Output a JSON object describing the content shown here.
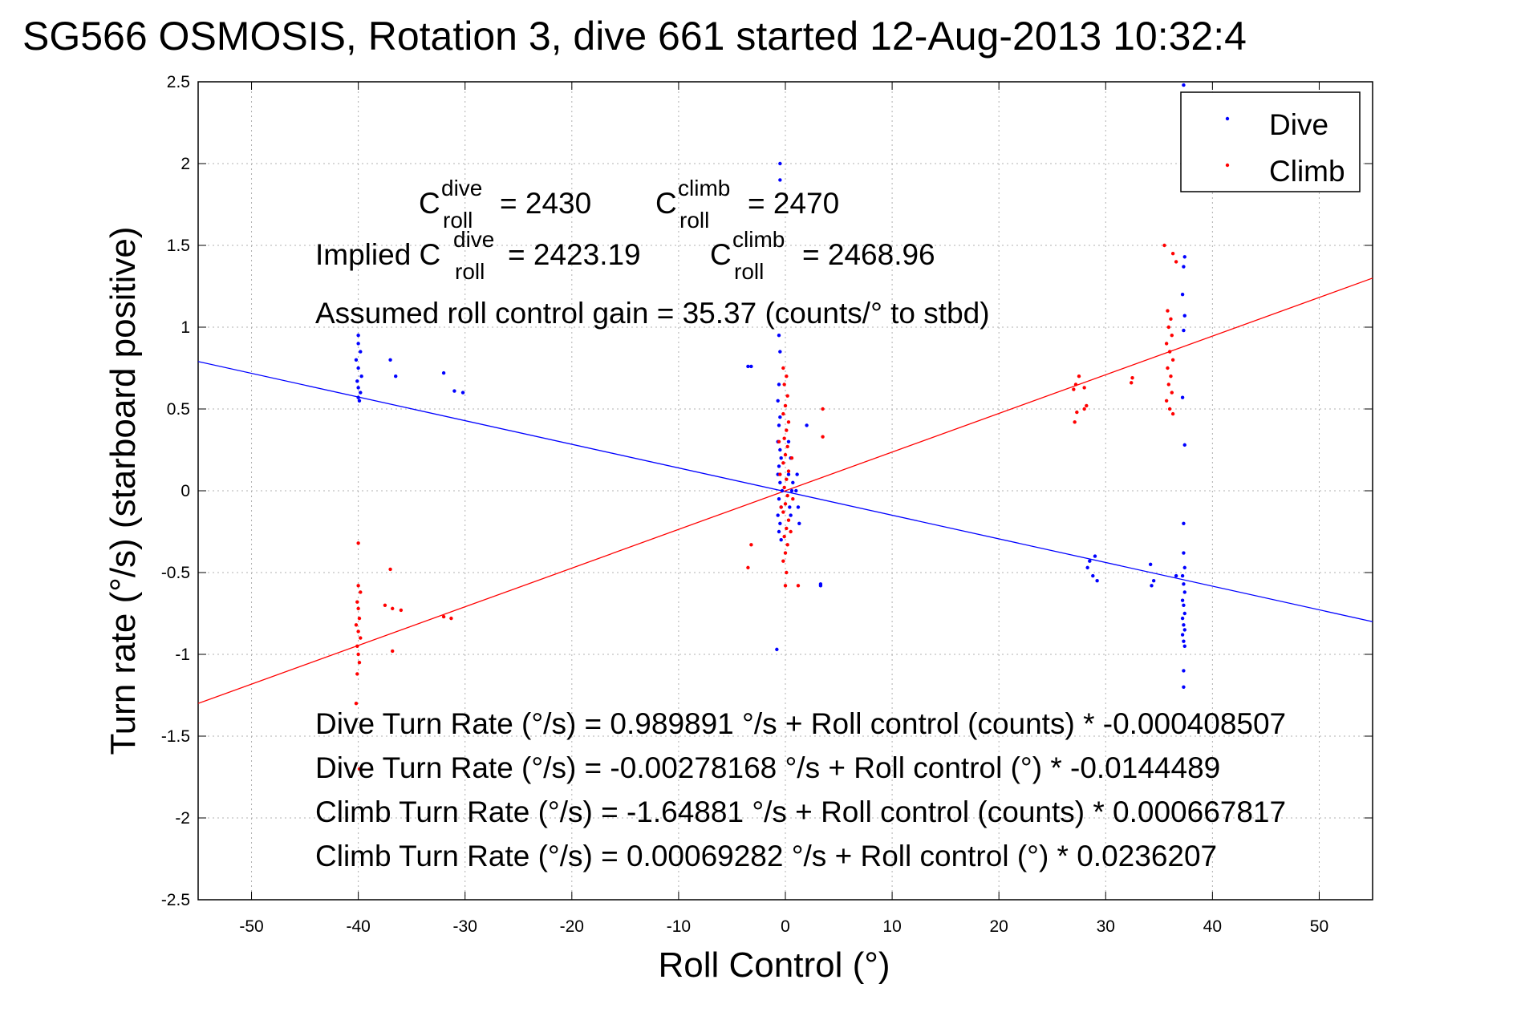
{
  "chart_data": {
    "type": "scatter",
    "title": "SG566 OSMOSIS, Rotation 3, dive 661 started 12-Aug-2013 10:32:4",
    "xlabel": "Roll Control (°)",
    "ylabel": "Turn rate (°/s)  (starboard positive)",
    "xlim": [
      -55,
      55
    ],
    "ylim": [
      -2.5,
      2.5
    ],
    "xticks": [
      -50,
      -40,
      -30,
      -20,
      -10,
      0,
      10,
      20,
      30,
      40,
      50
    ],
    "yticks": [
      -2.5,
      -2,
      -1.5,
      -1,
      -0.5,
      0,
      0.5,
      1,
      1.5,
      2,
      2.5
    ],
    "grid": true,
    "legend": {
      "placement": "top-right",
      "entries": [
        "Dive",
        "Climb"
      ]
    },
    "colors": {
      "Dive": "#0000ff",
      "Climb": "#ff0000"
    },
    "series": [
      {
        "name": "Dive",
        "color": "#0000ff",
        "points": [
          [
            -40,
            0.95
          ],
          [
            -40,
            0.9
          ],
          [
            -39.8,
            0.85
          ],
          [
            -40.2,
            0.8
          ],
          [
            -40,
            0.75
          ],
          [
            -39.7,
            0.7
          ],
          [
            -40.1,
            0.67
          ],
          [
            -40,
            0.63
          ],
          [
            -39.8,
            0.6
          ],
          [
            -40,
            0.57
          ],
          [
            -39.9,
            0.55
          ],
          [
            -37,
            0.8
          ],
          [
            -36.5,
            0.7
          ],
          [
            -32,
            0.72
          ],
          [
            -31,
            0.61
          ],
          [
            -30.2,
            0.6
          ],
          [
            -0.5,
            2.0
          ],
          [
            -0.5,
            1.9
          ],
          [
            -3.5,
            0.76
          ],
          [
            -3.2,
            0.76
          ],
          [
            -0.6,
            0.95
          ],
          [
            -0.5,
            0.85
          ],
          [
            -0.6,
            0.65
          ],
          [
            -0.7,
            0.55
          ],
          [
            -0.5,
            0.45
          ],
          [
            -0.6,
            0.4
          ],
          [
            -0.7,
            0.3
          ],
          [
            -0.5,
            0.25
          ],
          [
            -0.4,
            0.2
          ],
          [
            -0.6,
            0.15
          ],
          [
            -0.7,
            0.1
          ],
          [
            -0.5,
            0.05
          ],
          [
            -0.3,
            0.0
          ],
          [
            -0.6,
            -0.05
          ],
          [
            -0.4,
            -0.1
          ],
          [
            -0.7,
            -0.15
          ],
          [
            -0.5,
            -0.2
          ],
          [
            -0.6,
            -0.25
          ],
          [
            -0.4,
            -0.3
          ],
          [
            0.3,
            0.3
          ],
          [
            0.5,
            0.2
          ],
          [
            0.3,
            0.1
          ],
          [
            0.6,
            0.0
          ],
          [
            0.4,
            -0.1
          ],
          [
            0.5,
            -0.15
          ],
          [
            0.7,
            0.05
          ],
          [
            1.0,
            0.0
          ],
          [
            1.2,
            -0.1
          ],
          [
            1.1,
            0.1
          ],
          [
            1.3,
            -0.2
          ],
          [
            2.0,
            0.4
          ],
          [
            3.3,
            -0.57
          ],
          [
            3.3,
            -0.58
          ],
          [
            -0.8,
            -0.97
          ],
          [
            28.5,
            -0.43
          ],
          [
            29.0,
            -0.4
          ],
          [
            28.3,
            -0.47
          ],
          [
            28.8,
            -0.52
          ],
          [
            29.2,
            -0.55
          ],
          [
            34.2,
            -0.45
          ],
          [
            34.5,
            -0.55
          ],
          [
            34.3,
            -0.58
          ],
          [
            36.6,
            -0.52
          ],
          [
            37.3,
            2.48
          ],
          [
            37.4,
            1.43
          ],
          [
            37.3,
            1.37
          ],
          [
            37.2,
            1.2
          ],
          [
            37.4,
            1.07
          ],
          [
            37.3,
            0.98
          ],
          [
            37.2,
            0.57
          ],
          [
            37.4,
            0.28
          ],
          [
            37.3,
            -0.2
          ],
          [
            37.3,
            -0.38
          ],
          [
            37.4,
            -0.47
          ],
          [
            37.2,
            -0.52
          ],
          [
            37.3,
            -0.57
          ],
          [
            37.4,
            -0.62
          ],
          [
            37.2,
            -0.67
          ],
          [
            37.3,
            -0.7
          ],
          [
            37.4,
            -0.75
          ],
          [
            37.2,
            -0.78
          ],
          [
            37.3,
            -0.82
          ],
          [
            37.4,
            -0.85
          ],
          [
            37.2,
            -0.88
          ],
          [
            37.3,
            -0.92
          ],
          [
            37.4,
            -0.95
          ],
          [
            37.3,
            -1.1
          ],
          [
            37.3,
            -1.2
          ]
        ]
      },
      {
        "name": "Climb",
        "color": "#ff0000",
        "points": [
          [
            -40,
            -0.32
          ],
          [
            -40,
            -0.58
          ],
          [
            -39.8,
            -0.62
          ],
          [
            -40.1,
            -0.68
          ],
          [
            -40,
            -0.72
          ],
          [
            -39.9,
            -0.78
          ],
          [
            -40.2,
            -0.82
          ],
          [
            -40,
            -0.86
          ],
          [
            -39.8,
            -0.9
          ],
          [
            -40.1,
            -0.95
          ],
          [
            -40,
            -1.0
          ],
          [
            -39.9,
            -1.05
          ],
          [
            -40.1,
            -1.12
          ],
          [
            -40.2,
            -1.3
          ],
          [
            -39.9,
            -1.7
          ],
          [
            -37,
            -0.48
          ],
          [
            -37.5,
            -0.7
          ],
          [
            -36.8,
            -0.72
          ],
          [
            -36,
            -0.73
          ],
          [
            -36.8,
            -0.98
          ],
          [
            -32,
            -0.77
          ],
          [
            -31.3,
            -0.78
          ],
          [
            -0.2,
            0.75
          ],
          [
            0.1,
            0.7
          ],
          [
            -0.1,
            0.65
          ],
          [
            0.2,
            0.58
          ],
          [
            0.0,
            0.52
          ],
          [
            -0.2,
            0.47
          ],
          [
            0.3,
            0.42
          ],
          [
            0.1,
            0.37
          ],
          [
            -0.1,
            0.32
          ],
          [
            0.2,
            0.27
          ],
          [
            0.0,
            0.22
          ],
          [
            -0.2,
            0.17
          ],
          [
            0.3,
            0.12
          ],
          [
            0.1,
            0.07
          ],
          [
            -0.1,
            0.02
          ],
          [
            0.2,
            -0.03
          ],
          [
            0.0,
            -0.08
          ],
          [
            -0.2,
            -0.13
          ],
          [
            0.3,
            -0.18
          ],
          [
            0.1,
            -0.23
          ],
          [
            -0.1,
            -0.28
          ],
          [
            0.2,
            -0.33
          ],
          [
            0.0,
            -0.38
          ],
          [
            -0.2,
            -0.43
          ],
          [
            0.1,
            -0.5
          ],
          [
            0.0,
            -0.58
          ],
          [
            -0.6,
            0.3
          ],
          [
            -0.5,
            0.1
          ],
          [
            -0.4,
            -0.1
          ],
          [
            0.6,
            0.2
          ],
          [
            0.7,
            -0.05
          ],
          [
            0.5,
            -0.25
          ],
          [
            -3.2,
            -0.33
          ],
          [
            -3.5,
            -0.47
          ],
          [
            1.2,
            -0.58
          ],
          [
            3.5,
            0.5
          ],
          [
            3.5,
            0.33
          ],
          [
            27,
            0.62
          ],
          [
            27.5,
            0.7
          ],
          [
            27.2,
            0.65
          ],
          [
            27.3,
            0.48
          ],
          [
            27.1,
            0.42
          ],
          [
            28,
            0.5
          ],
          [
            28.2,
            0.52
          ],
          [
            28,
            0.63
          ],
          [
            32.5,
            0.69
          ],
          [
            32.4,
            0.66
          ],
          [
            35.5,
            1.5
          ],
          [
            36.3,
            1.45
          ],
          [
            36.6,
            1.4
          ],
          [
            35.8,
            1.1
          ],
          [
            36.1,
            1.05
          ],
          [
            35.9,
            1.0
          ],
          [
            36.2,
            0.95
          ],
          [
            35.7,
            0.9
          ],
          [
            36.0,
            0.85
          ],
          [
            36.3,
            0.8
          ],
          [
            35.8,
            0.75
          ],
          [
            36.1,
            0.7
          ],
          [
            35.9,
            0.65
          ],
          [
            36.2,
            0.6
          ],
          [
            35.7,
            0.55
          ],
          [
            36.0,
            0.5
          ],
          [
            36.3,
            0.47
          ]
        ]
      }
    ],
    "fit_lines": [
      {
        "name": "Dive fit",
        "color": "#0000ff",
        "x": [
          -55,
          55
        ],
        "y": [
          0.79,
          -0.8
        ]
      },
      {
        "name": "Climb fit",
        "color": "#ff0000",
        "x": [
          -55,
          55
        ],
        "y": [
          -1.3,
          1.3
        ]
      }
    ],
    "annotations": {
      "c_roll_dive": {
        "prefix": "C",
        "sup": "dive",
        "sub": "roll",
        "value": "= 2430"
      },
      "c_roll_climb": {
        "prefix": "C",
        "sup": "climb",
        "sub": "roll",
        "value": "= 2470"
      },
      "implied_dive": {
        "prefix": "Implied C",
        "sup": "dive",
        "sub": "roll",
        "value": "= 2423.19"
      },
      "implied_climb": {
        "prefix": "C",
        "sup": "climb",
        "sub": "roll",
        "value": "= 2468.96"
      },
      "gain": "Assumed roll control gain = 35.37 (counts/° to stbd)",
      "eq1": "Dive Turn Rate (°/s) = 0.989891 °/s + Roll control (counts) * -0.000408507",
      "eq2": "Dive Turn Rate (°/s) = -0.00278168 °/s + Roll control (°) * -0.0144489",
      "eq3": "Climb Turn Rate (°/s) = -1.64881 °/s + Roll control (counts) * 0.000667817",
      "eq4": "Climb Turn Rate (°/s) = 0.00069282 °/s + Roll control (°) * 0.0236207"
    }
  }
}
